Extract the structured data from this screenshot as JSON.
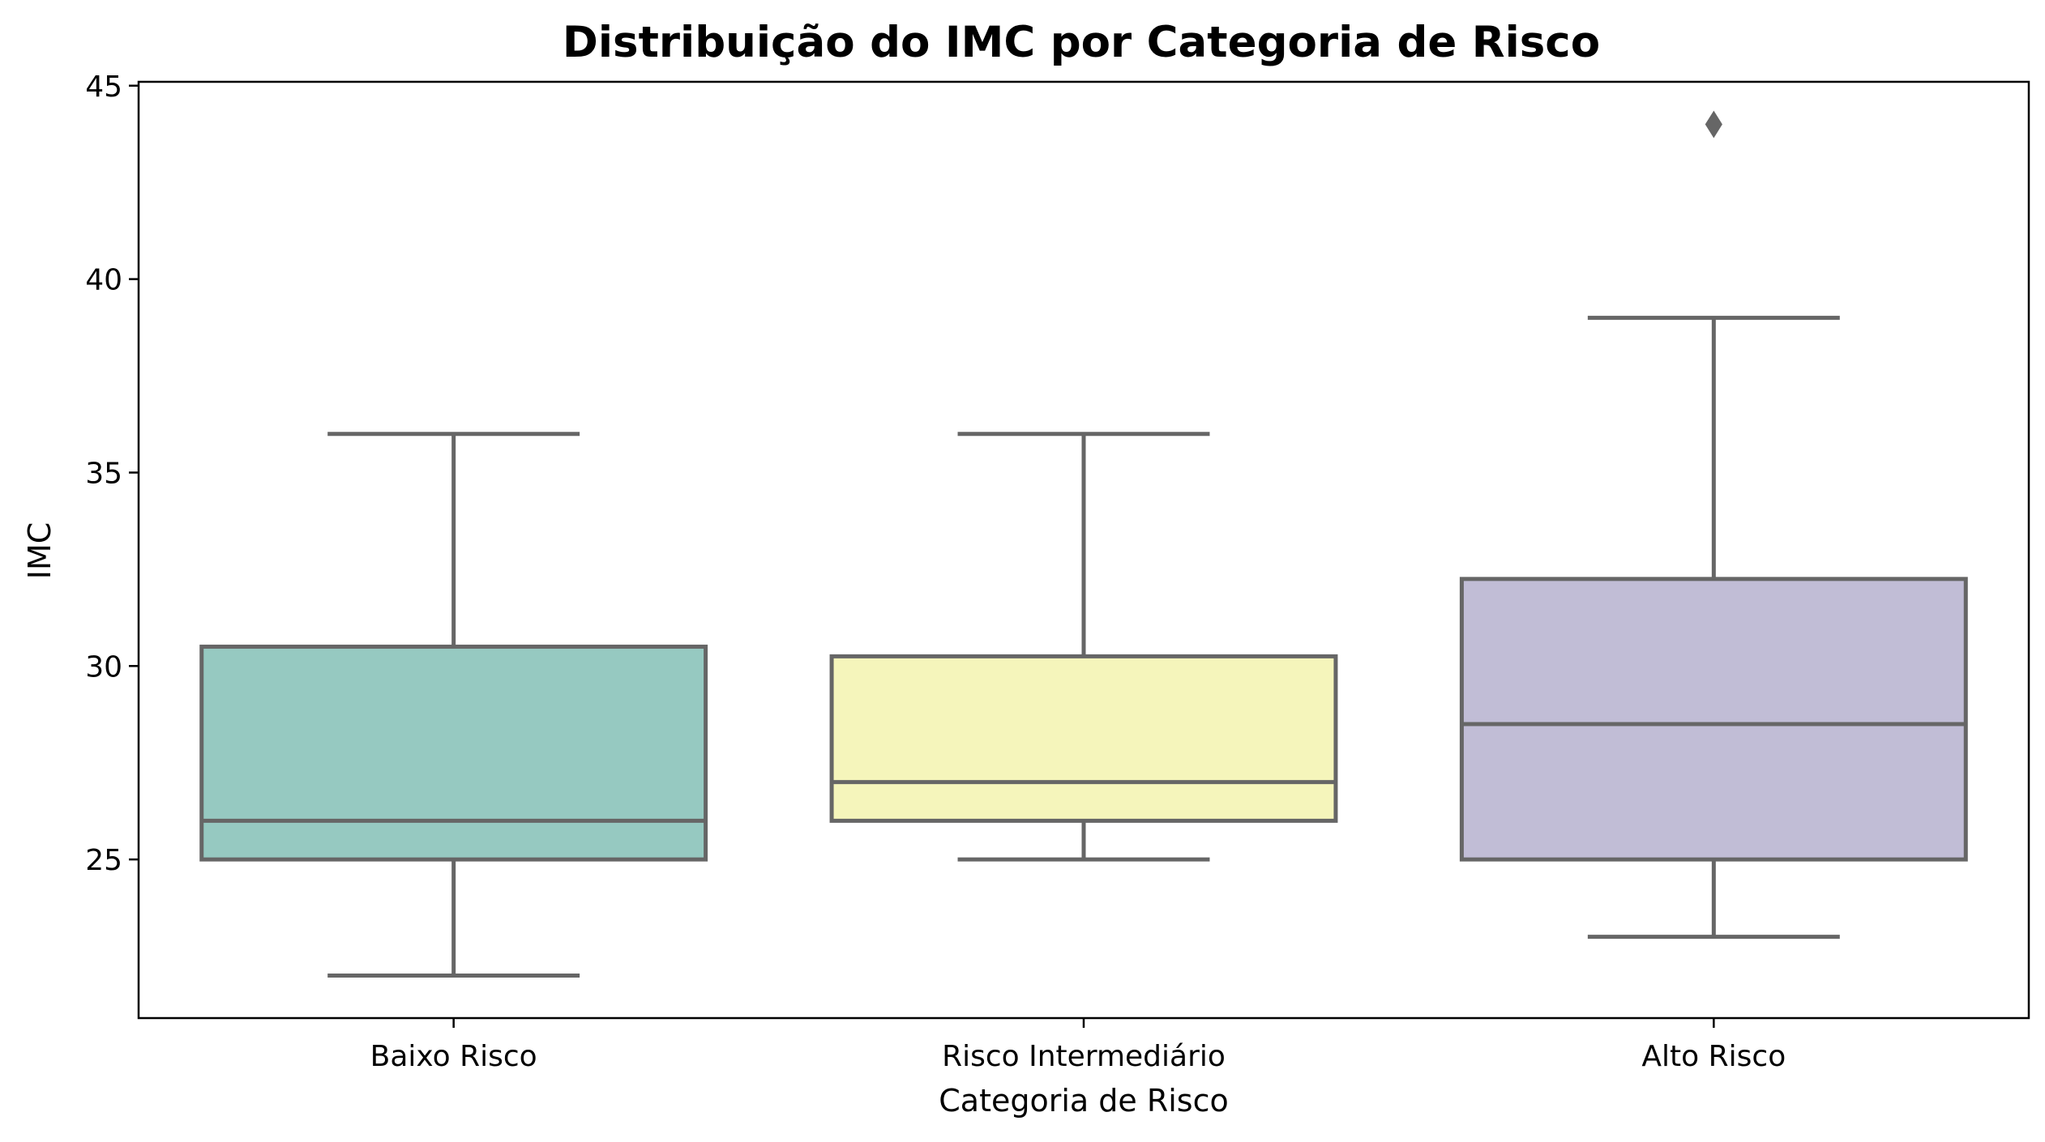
{
  "chart_data": {
    "type": "box",
    "title": "Distribuição do IMC por Categoria de Risco",
    "xlabel": "Categoria de Risco",
    "ylabel": "IMC",
    "ylim": [
      20.9,
      45.1
    ],
    "yticks": [
      25,
      30,
      35,
      40,
      45
    ],
    "categories": [
      "Baixo Risco",
      "Risco Intermediário",
      "Alto Risco"
    ],
    "boxes": [
      {
        "category": "Baixo Risco",
        "whisker_low": 22,
        "q1": 25,
        "median": 26,
        "q3": 30.5,
        "whisker_high": 36,
        "outliers": [],
        "color": "#96c9c1"
      },
      {
        "category": "Risco Intermediário",
        "whisker_low": 25,
        "q1": 26,
        "median": 27,
        "q3": 30.25,
        "whisker_high": 36,
        "outliers": [],
        "color": "#f5f5bb"
      },
      {
        "category": "Alto Risco",
        "whisker_low": 23,
        "q1": 25,
        "median": 28.5,
        "q3": 32.25,
        "whisker_high": 39,
        "outliers": [
          44
        ],
        "color": "#c1bdd6"
      }
    ],
    "line_color": "#666666",
    "grid": false,
    "legend": "none"
  }
}
